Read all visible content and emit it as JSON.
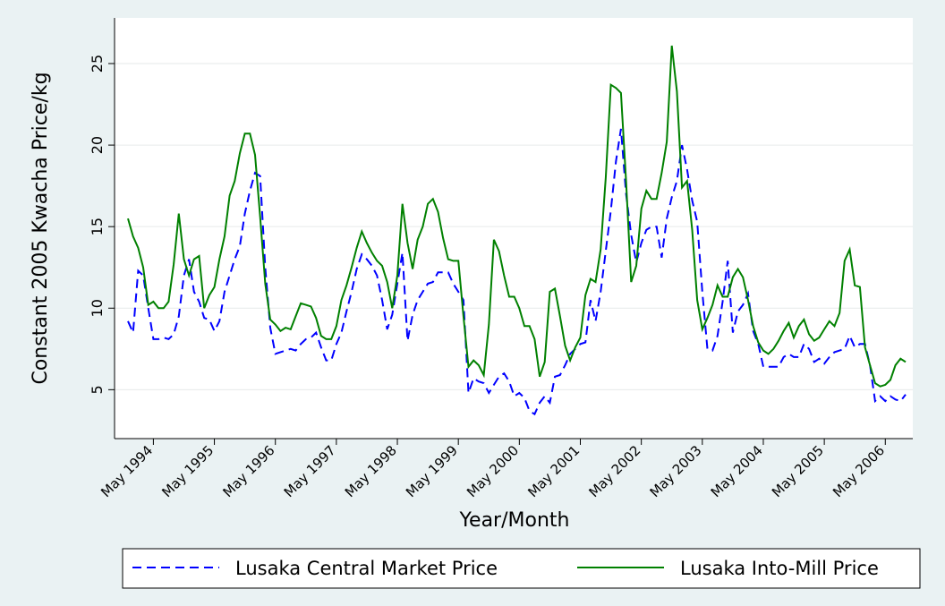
{
  "chart_data": {
    "type": "line",
    "y_label": "Constant 2005 Kwacha Price/kg",
    "x_label": "Year/Month",
    "categories": [
      null,
      null,
      null,
      null,
      null,
      "May 1994",
      null,
      null,
      null,
      null,
      null,
      null,
      null,
      null,
      null,
      null,
      null,
      "May 1995",
      null,
      null,
      null,
      null,
      null,
      null,
      null,
      null,
      null,
      null,
      null,
      "May 1996",
      null,
      null,
      null,
      null,
      null,
      null,
      null,
      null,
      null,
      null,
      null,
      "May 1997",
      null,
      null,
      null,
      null,
      null,
      null,
      null,
      null,
      null,
      null,
      null,
      "May 1998",
      null,
      null,
      null,
      null,
      null,
      null,
      null,
      null,
      null,
      null,
      null,
      "May 1999",
      null,
      null,
      null,
      null,
      null,
      null,
      null,
      null,
      null,
      null,
      null,
      "May 2000",
      null,
      null,
      null,
      null,
      null,
      null,
      null,
      null,
      null,
      null,
      null,
      "May 2001",
      null,
      null,
      null,
      null,
      null,
      null,
      null,
      null,
      null,
      null,
      null,
      "May 2002",
      null,
      null,
      null,
      null,
      null,
      null,
      null,
      null,
      null,
      null,
      null,
      "May 2003",
      null,
      null,
      null,
      null,
      null,
      null,
      null,
      null,
      null,
      null,
      null,
      "May 2004",
      null,
      null,
      null,
      null,
      null,
      null,
      null,
      null,
      null,
      null,
      null,
      "May 2005",
      null,
      null,
      null,
      null,
      null,
      null,
      null,
      null,
      null,
      null,
      null,
      "May 2006",
      null,
      null,
      null,
      null
    ],
    "series": [
      {
        "name": "Lusaka Central Market Price",
        "color": "#0000ff",
        "dash": true,
        "values": [
          9.2,
          8.5,
          12.3,
          12.0,
          10.0,
          8.1,
          8.1,
          8.2,
          8.1,
          8.4,
          9.5,
          12.0,
          13.0,
          11.0,
          10.4,
          9.4,
          9.3,
          8.6,
          9.2,
          11.0,
          12.0,
          13.0,
          13.8,
          15.8,
          17.2,
          18.3,
          18.1,
          12.5,
          8.8,
          7.2,
          7.3,
          7.4,
          7.5,
          7.4,
          7.8,
          8.1,
          8.2,
          8.5,
          7.6,
          6.8,
          6.8,
          7.8,
          8.5,
          9.8,
          11.0,
          12.4,
          13.3,
          13.0,
          12.6,
          12.0,
          10.5,
          8.7,
          9.6,
          11.5,
          13.4,
          8.0,
          9.6,
          10.5,
          11.0,
          11.5,
          11.6,
          12.2,
          12.2,
          12.2,
          11.5,
          11.0,
          10.5,
          4.8,
          5.7,
          5.5,
          5.4,
          4.8,
          5.3,
          5.8,
          6.0,
          5.5,
          4.6,
          4.8,
          4.5,
          3.7,
          3.5,
          4.2,
          4.6,
          4.2,
          5.8,
          5.9,
          6.5,
          7.2,
          7.5,
          7.8,
          7.9,
          10.5,
          9.2,
          11.0,
          13.5,
          16.0,
          19.0,
          21.0,
          17.0,
          14.5,
          12.8,
          14.0,
          14.8,
          15.0,
          15.0,
          13.1,
          15.5,
          16.8,
          17.8,
          20.0,
          18.5,
          16.6,
          15.3,
          11.0,
          7.5,
          7.4,
          8.3,
          10.4,
          12.9,
          8.5,
          9.8,
          10.2,
          10.9,
          8.6,
          7.8,
          6.4,
          6.4,
          6.4,
          6.4,
          7.0,
          7.2,
          7.0,
          7.0,
          7.8,
          7.5,
          6.7,
          6.9,
          6.6,
          7.0,
          7.3,
          7.4,
          7.5,
          8.3,
          7.6,
          7.8,
          7.8,
          6.5,
          4.3,
          4.6,
          4.3,
          4.6,
          4.4,
          4.3,
          4.7
        ]
      },
      {
        "name": "Lusaka Into-Mill Price",
        "color": "#008000",
        "dash": false,
        "values": [
          15.5,
          14.4,
          13.7,
          12.5,
          10.2,
          10.4,
          10.0,
          10.0,
          10.4,
          12.7,
          15.8,
          13.0,
          12.0,
          13.0,
          13.2,
          10.0,
          10.8,
          11.3,
          13.0,
          14.4,
          16.9,
          17.8,
          19.5,
          20.7,
          20.7,
          19.4,
          15.6,
          11.5,
          9.3,
          9.0,
          8.6,
          8.8,
          8.7,
          9.5,
          10.3,
          10.2,
          10.1,
          9.4,
          8.3,
          8.1,
          8.1,
          8.9,
          10.5,
          11.4,
          12.5,
          13.7,
          14.7,
          14.0,
          13.4,
          12.9,
          12.6,
          11.6,
          10.0,
          12.0,
          16.4,
          14.0,
          12.4,
          14.2,
          15.0,
          16.4,
          16.7,
          15.9,
          14.3,
          13.0,
          12.9,
          12.9,
          9.5,
          6.4,
          6.8,
          6.5,
          5.9,
          9.0,
          14.2,
          13.5,
          12.0,
          10.7,
          10.7,
          10.0,
          8.9,
          8.9,
          8.1,
          5.8,
          6.7,
          11.0,
          11.2,
          9.5,
          7.7,
          6.8,
          7.6,
          8.2,
          10.8,
          11.8,
          11.6,
          13.6,
          18.0,
          23.7,
          23.5,
          23.2,
          17.8,
          11.6,
          12.6,
          16.1,
          17.2,
          16.7,
          16.7,
          18.3,
          20.2,
          26.1,
          23.3,
          17.4,
          17.8,
          14.8,
          10.5,
          8.7,
          9.4,
          10.2,
          11.4,
          10.7,
          10.7,
          11.9,
          12.4,
          11.9,
          10.5,
          8.9,
          7.9,
          7.4,
          7.2,
          7.5,
          8.0,
          8.6,
          9.1,
          8.2,
          8.9,
          9.3,
          8.4,
          8.0,
          8.2,
          8.7,
          9.2,
          8.9,
          9.7,
          12.9,
          13.6,
          11.4,
          11.3,
          7.6,
          6.5,
          5.4,
          5.2,
          5.3,
          5.6,
          6.5,
          6.9,
          6.7
        ]
      }
    ],
    "ylim": [
      2,
      27.8
    ],
    "yticks": [
      5,
      10,
      15,
      20,
      25
    ],
    "grid": true,
    "legend": "bottom"
  }
}
